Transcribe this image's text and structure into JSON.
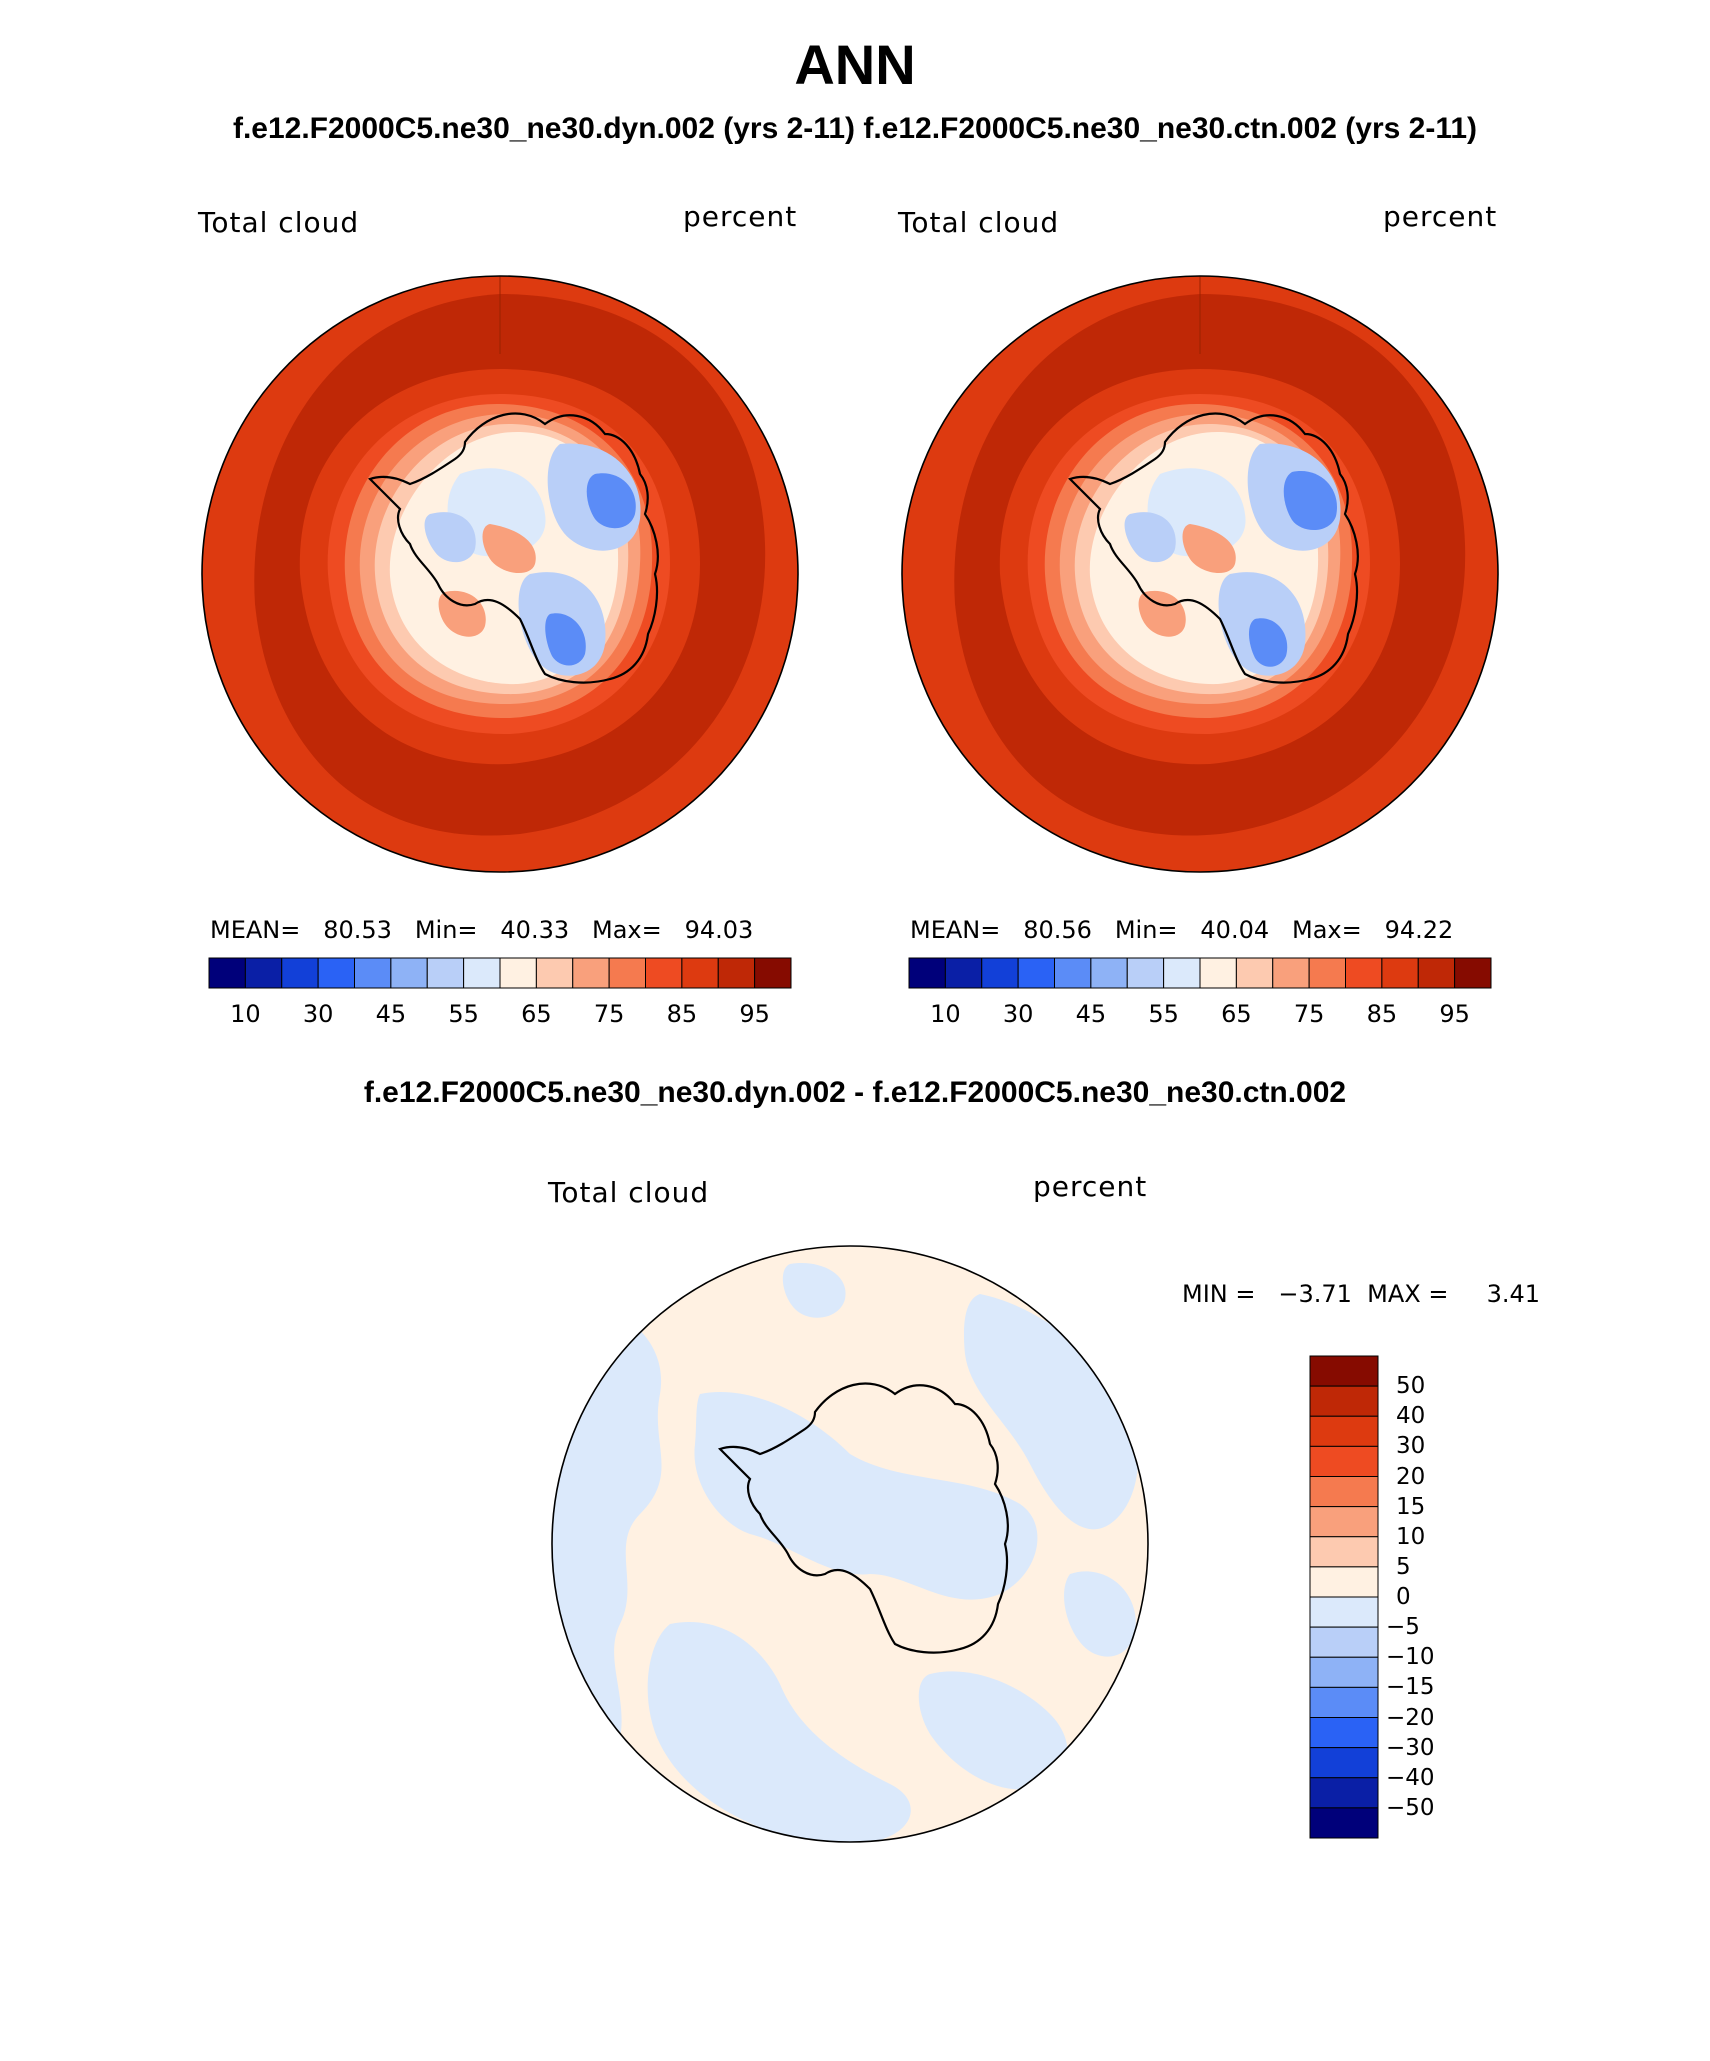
{
  "header": {
    "title": "ANN",
    "subtitle": "f.e12.F2000C5.ne30_ne30.dyn.002 (yrs 2-11)  f.e12.F2000C5.ne30_ne30.ctn.002 (yrs 2-11)",
    "diff_title": "f.e12.F2000C5.ne30_ne30.dyn.002 - f.e12.F2000C5.ne30_ne30.ctn.002"
  },
  "panels": [
    {
      "variable": "Total cloud",
      "units": "percent",
      "stats": "MEAN=   80.53   Min=   40.33   Max=   94.03"
    },
    {
      "variable": "Total cloud",
      "units": "percent",
      "stats": "MEAN=   80.56   Min=   40.04   Max=   94.22"
    }
  ],
  "diff_panel": {
    "variable": "Total cloud",
    "units": "percent",
    "stats": "MIN =   −3.71  MAX =     3.41"
  },
  "colorbar_abs": {
    "colors": [
      "#00007a",
      "#0a1fa6",
      "#1240d8",
      "#2a62f5",
      "#5b8cf7",
      "#8eb2f6",
      "#b9cff8",
      "#dbe9fb",
      "#fff1e2",
      "#fdcab0",
      "#f9a07c",
      "#f57a4f",
      "#ee4b22",
      "#dd3a10",
      "#bf2806",
      "#860b00"
    ],
    "tick_labels": [
      "10",
      "30",
      "45",
      "55",
      "65",
      "75",
      "85",
      "95"
    ]
  },
  "colorbar_diff": {
    "colors": [
      "#860b00",
      "#bf2806",
      "#dd3a10",
      "#ee4b22",
      "#f57a4f",
      "#f9a07c",
      "#fdcab0",
      "#fff1e2",
      "#dbe9fb",
      "#b9cff8",
      "#8eb2f6",
      "#5b8cf7",
      "#2a62f5",
      "#1240d8",
      "#0a1fa6",
      "#00007a"
    ],
    "tick_labels": [
      "50",
      "40",
      "30",
      "20",
      "15",
      "10",
      "5",
      "0",
      "−5",
      "−10",
      "−15",
      "−20",
      "−30",
      "−40",
      "−50"
    ]
  }
}
